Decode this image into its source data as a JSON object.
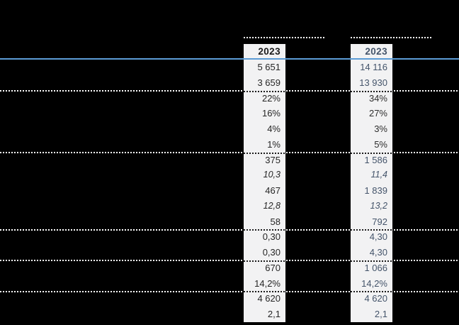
{
  "page": {
    "background_color": "#000000",
    "accent_rule_color": "#5b9bd5",
    "strip_background_color": "#f2f2f3",
    "separator_dot_dark": "#1c1c1c",
    "separator_dot_light": "#ffffff"
  },
  "table": {
    "columns": [
      {
        "header": "2023",
        "header_color": "#1a1a1a",
        "text_color": "#262626"
      },
      {
        "header": "2023",
        "header_color": "#44546a",
        "text_color": "#44546a"
      }
    ],
    "rows": [
      {
        "values": [
          "5 651",
          "14 116"
        ],
        "italic": false,
        "separator_above": false,
        "col2_dark": false
      },
      {
        "values": [
          "3 659",
          "13 930"
        ],
        "italic": false,
        "separator_above": false,
        "col2_dark": false
      },
      {
        "values": [
          "22%",
          "34%"
        ],
        "italic": false,
        "separator_above": true,
        "col2_dark": true
      },
      {
        "values": [
          "16%",
          "27%"
        ],
        "italic": false,
        "separator_above": false,
        "col2_dark": true
      },
      {
        "values": [
          "4%",
          "3%"
        ],
        "italic": false,
        "separator_above": false,
        "col2_dark": true
      },
      {
        "values": [
          "1%",
          "5%"
        ],
        "italic": false,
        "separator_above": false,
        "col2_dark": true
      },
      {
        "values": [
          "375",
          "1 586"
        ],
        "italic": false,
        "separator_above": true,
        "col2_dark": false
      },
      {
        "values": [
          "10,3",
          "11,4"
        ],
        "italic": true,
        "separator_above": false,
        "col2_dark": false
      },
      {
        "values": [
          "467",
          "1 839"
        ],
        "italic": false,
        "separator_above": false,
        "col2_dark": false
      },
      {
        "values": [
          "12,8",
          "13,2"
        ],
        "italic": true,
        "separator_above": false,
        "col2_dark": false
      },
      {
        "values": [
          "58",
          "792"
        ],
        "italic": false,
        "separator_above": false,
        "col2_dark": false
      },
      {
        "values": [
          "0,30",
          "4,30"
        ],
        "italic": false,
        "separator_above": true,
        "col2_dark": false
      },
      {
        "values": [
          "0,30",
          "4,30"
        ],
        "italic": false,
        "separator_above": false,
        "col2_dark": false
      },
      {
        "values": [
          "670",
          "1 066"
        ],
        "italic": false,
        "separator_above": true,
        "col2_dark": false
      },
      {
        "values": [
          "14,2%",
          "14,2%"
        ],
        "italic": false,
        "separator_above": false,
        "col2_dark": false
      },
      {
        "values": [
          "4 620",
          "4 620"
        ],
        "italic": false,
        "separator_above": true,
        "col2_dark": false
      },
      {
        "values": [
          "2,1",
          "2,1"
        ],
        "italic": false,
        "separator_above": false,
        "col2_dark": false
      }
    ],
    "col2_dark_color": "#2e2e2e"
  }
}
